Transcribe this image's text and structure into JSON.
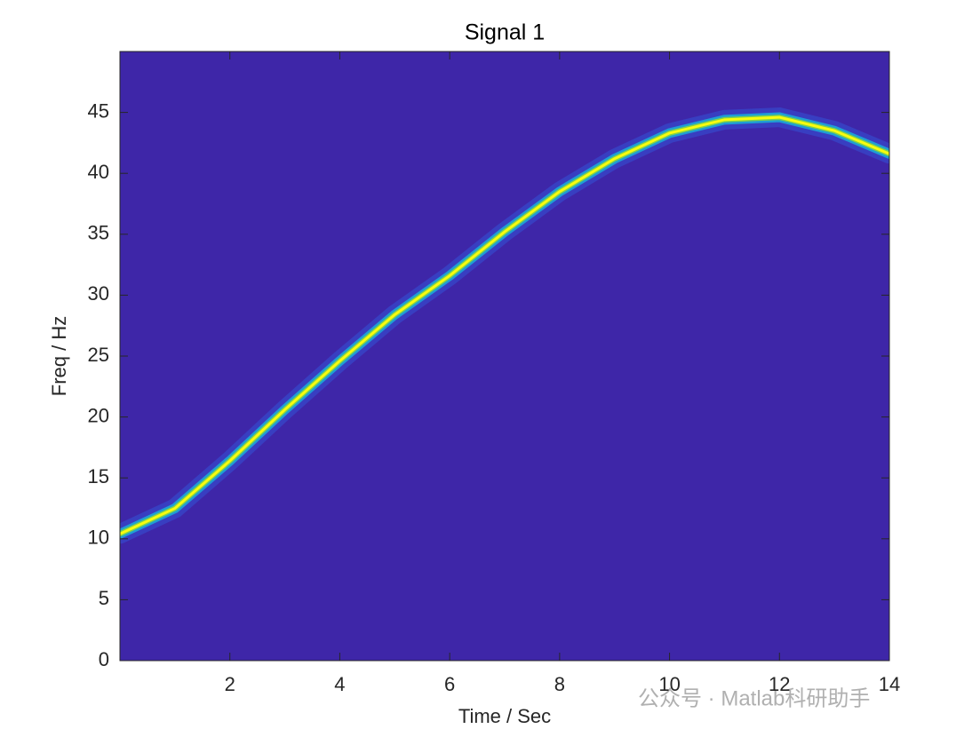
{
  "chart_data": {
    "type": "ridge",
    "title": "Signal 1",
    "x_label": "Time / Sec",
    "y_label": "Freq / Hz",
    "x": [
      0,
      1,
      2,
      3,
      4,
      5,
      6,
      7,
      8,
      9,
      10,
      11,
      12,
      13,
      14
    ],
    "series": [
      {
        "color": "#f9fb0e",
        "values": [
          10.4,
          12.5,
          16.4,
          20.6,
          24.6,
          28.4,
          31.6,
          35.2,
          38.5,
          41.2,
          43.3,
          44.4,
          44.6,
          43.5,
          41.6
        ]
      }
    ],
    "background": "#3e26a8",
    "xlim": [
      0,
      14
    ],
    "xticks": [
      2,
      4,
      6,
      8,
      10,
      12,
      14
    ],
    "ylim": [
      0,
      50
    ],
    "yticks": [
      0,
      5,
      10,
      15,
      20,
      25,
      30,
      35,
      40,
      45
    ],
    "watermark": "公众号 · Matlab科研助手"
  }
}
